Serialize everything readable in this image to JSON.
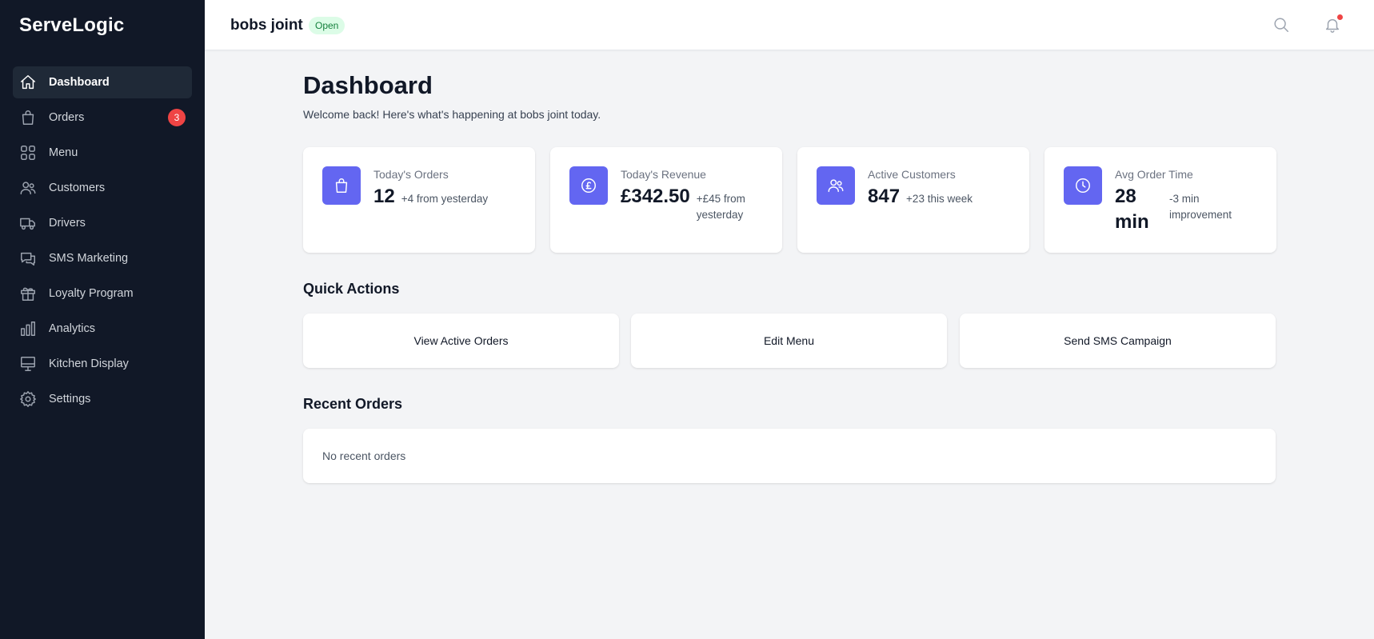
{
  "app": {
    "brand": "ServeLogic"
  },
  "colors": {
    "sidebar_bg": "#111827",
    "accent": "#6366f1",
    "badge": "#ef4444",
    "open_bg": "#dcfce7",
    "open_text": "#15803d"
  },
  "sidebar": {
    "items": [
      {
        "label": "Dashboard",
        "icon": "home-icon",
        "active": true
      },
      {
        "label": "Orders",
        "icon": "shopping-bag-icon",
        "badge": "3"
      },
      {
        "label": "Menu",
        "icon": "grid-icon"
      },
      {
        "label": "Customers",
        "icon": "users-icon"
      },
      {
        "label": "Drivers",
        "icon": "truck-icon"
      },
      {
        "label": "SMS Marketing",
        "icon": "chat-icon"
      },
      {
        "label": "Loyalty Program",
        "icon": "gift-icon"
      },
      {
        "label": "Analytics",
        "icon": "bar-chart-icon"
      },
      {
        "label": "Kitchen Display",
        "icon": "monitor-icon"
      },
      {
        "label": "Settings",
        "icon": "gear-icon"
      }
    ]
  },
  "header": {
    "venue_name": "bobs joint",
    "status": "Open",
    "search_icon": "search-icon",
    "notification_icon": "bell-icon"
  },
  "main": {
    "title": "Dashboard",
    "welcome": "Welcome back! Here's what's happening at bobs joint today.",
    "stats": [
      {
        "label": "Today's Orders",
        "value": "12",
        "change": "+4 from yesterday",
        "icon": "shopping-bag-icon"
      },
      {
        "label": "Today's Revenue",
        "value": "£342.50",
        "change": "+£45 from yesterday",
        "icon": "pound-icon"
      },
      {
        "label": "Active Customers",
        "value": "847",
        "change": "+23 this week",
        "icon": "users-icon"
      },
      {
        "label": "Avg Order Time",
        "value": "28 min",
        "change": "-3 min improvement",
        "icon": "clock-icon"
      }
    ],
    "quick_actions_title": "Quick Actions",
    "quick_actions": [
      "View Active Orders",
      "Edit Menu",
      "Send SMS Campaign"
    ],
    "recent_orders_title": "Recent Orders",
    "recent_orders_empty": "No recent orders"
  }
}
